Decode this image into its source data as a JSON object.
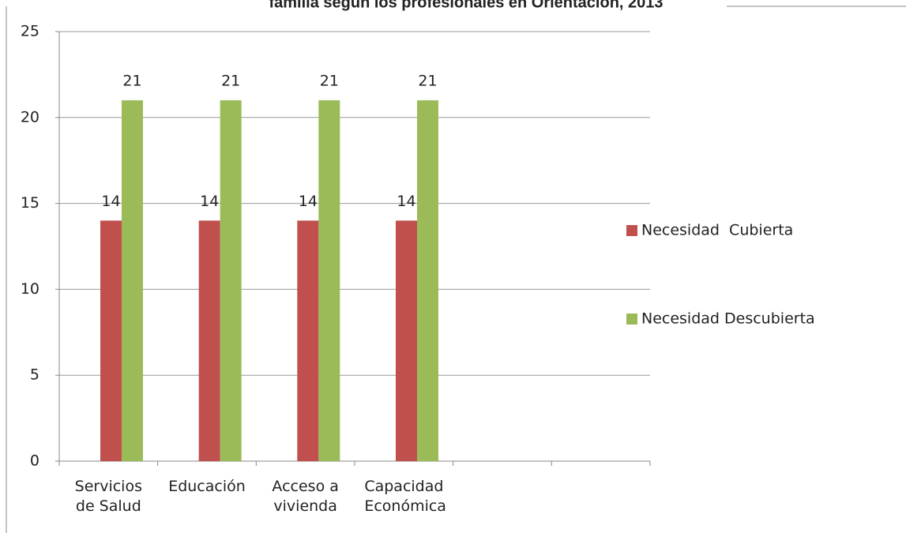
{
  "chart_data": {
    "type": "bar",
    "title": "familia según los profesionales en Orientación, 2013",
    "categories": [
      "Servicios de Salud",
      "Educación",
      "Acceso a vivienda",
      "Capacidad Económica",
      null,
      null
    ],
    "series": [
      {
        "name": "Necesidad  Cubierta",
        "color": "#c0504d",
        "values": [
          14,
          14,
          14,
          14,
          null,
          null
        ]
      },
      {
        "name": "Necesidad Descubierta",
        "color": "#9bbb59",
        "values": [
          21,
          21,
          21,
          21,
          null,
          null
        ]
      }
    ],
    "ylim": [
      0,
      25
    ],
    "yticks": [
      0,
      5,
      10,
      15,
      20,
      25
    ],
    "grid": true,
    "legend": "right"
  }
}
